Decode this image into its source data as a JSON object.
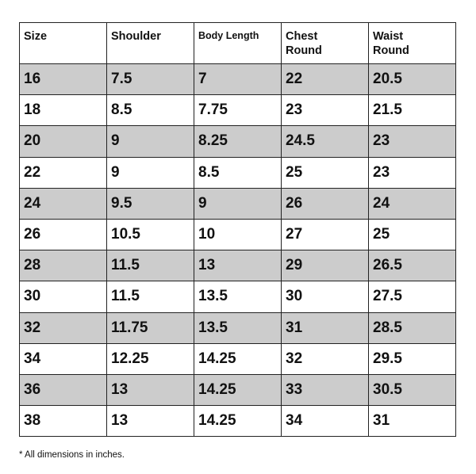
{
  "table": {
    "headers": [
      "Size",
      "Shoulder",
      "Body Length",
      "Chest\nRound",
      "Waist\nRound"
    ],
    "rows": [
      [
        "16",
        "7.5",
        "7",
        "22",
        "20.5"
      ],
      [
        "18",
        "8.5",
        "7.75",
        "23",
        "21.5"
      ],
      [
        "20",
        "9",
        "8.25",
        "24.5",
        "23"
      ],
      [
        "22",
        "9",
        "8.5",
        "25",
        "23"
      ],
      [
        "24",
        "9.5",
        "9",
        "26",
        "24"
      ],
      [
        "26",
        "10.5",
        "10",
        "27",
        "25"
      ],
      [
        "28",
        "11.5",
        "13",
        "29",
        "26.5"
      ],
      [
        "30",
        "11.5",
        "13.5",
        "30",
        "27.5"
      ],
      [
        "32",
        "11.75",
        "13.5",
        "31",
        "28.5"
      ],
      [
        "34",
        "12.25",
        "14.25",
        "32",
        "29.5"
      ],
      [
        "36",
        "13",
        "14.25",
        "33",
        "30.5"
      ],
      [
        "38",
        "13",
        "14.25",
        "34",
        "31"
      ]
    ],
    "shade_color": "#cccccc"
  },
  "footnote": "* All dimensions in inches."
}
